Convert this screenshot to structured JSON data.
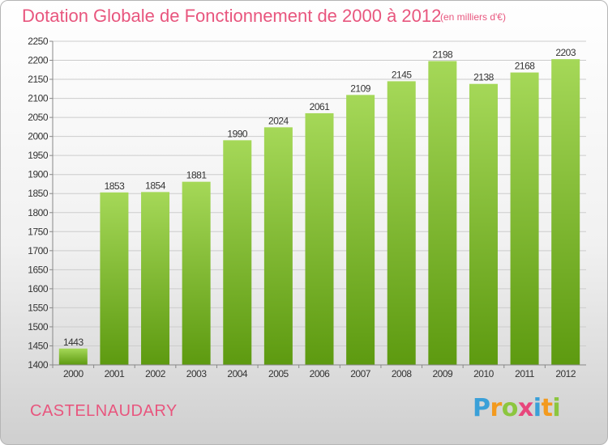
{
  "title": "Dotation Globale de Fonctionnement de 2000 à 2012",
  "subtitle": "(en milliers d'€)",
  "city": "CASTELNAUDARY",
  "logo": {
    "letters": [
      "P",
      "r",
      "o",
      "x",
      "i",
      "t",
      "i"
    ],
    "colors": [
      "#3aa0d8",
      "#f39a1e",
      "#8cc63f",
      "#e8467c",
      "#3aa0d8",
      "#f39a1e",
      "#8cc63f"
    ]
  },
  "colors": {
    "bar_top": "#a5d858",
    "bar_bottom": "#5d9a10",
    "grid": "#cccccc",
    "axis": "#888888"
  },
  "chart_data": {
    "type": "bar",
    "categories": [
      "2000",
      "2001",
      "2002",
      "2003",
      "2004",
      "2005",
      "2006",
      "2007",
      "2008",
      "2009",
      "2010",
      "2011",
      "2012"
    ],
    "values": [
      1443,
      1853,
      1854,
      1881,
      1990,
      2024,
      2061,
      2109,
      2145,
      2198,
      2138,
      2168,
      2203
    ],
    "title": "Dotation Globale de Fonctionnement de 2000 à 2012",
    "subtitle": "(en milliers d'€)",
    "xlabel": "",
    "ylabel": "",
    "ylim": [
      1400,
      2250
    ],
    "yticks": [
      1400,
      1450,
      1500,
      1550,
      1600,
      1650,
      1700,
      1750,
      1800,
      1850,
      1900,
      1950,
      2000,
      2050,
      2100,
      2150,
      2200,
      2250
    ],
    "grid": true,
    "data_labels": true
  }
}
